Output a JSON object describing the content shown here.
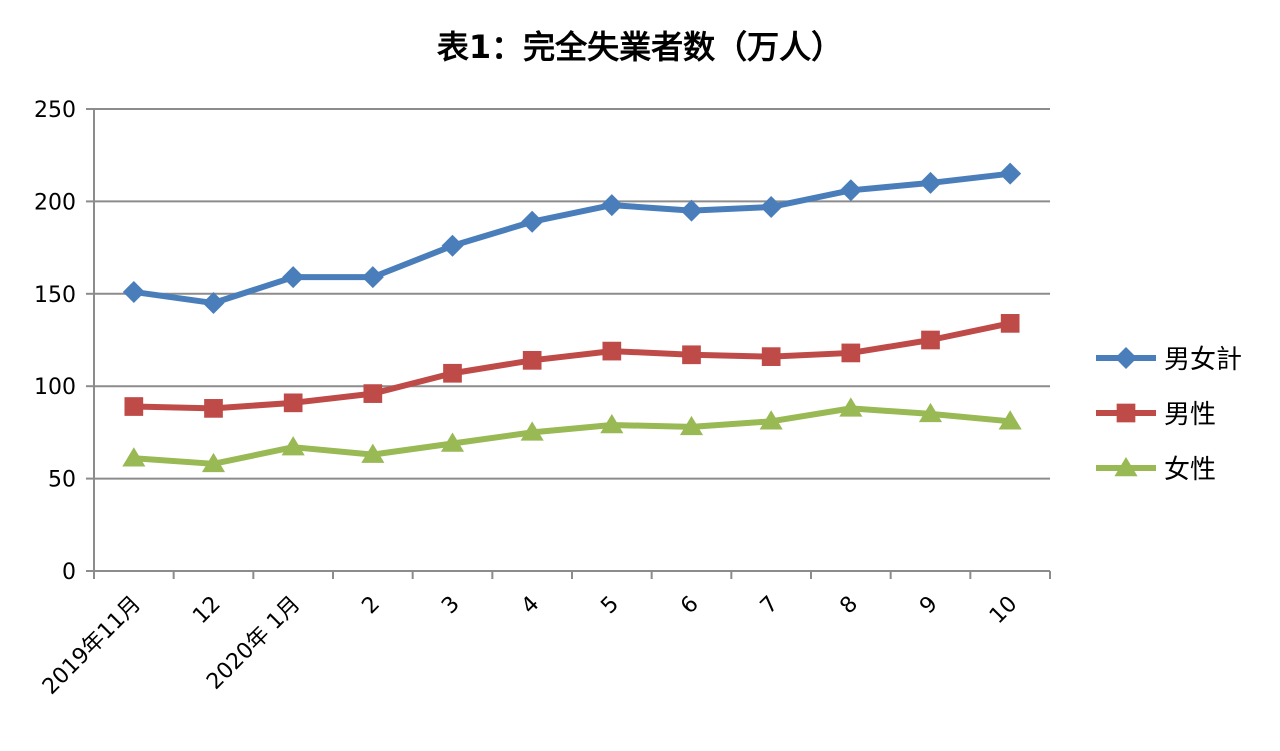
{
  "chart_data": {
    "type": "line",
    "title": "表1：完全失業者数（万人）",
    "xlabel": "",
    "ylabel": "",
    "categories": [
      "2019年11月",
      "12",
      "2020年 1月",
      "2",
      "3",
      "4",
      "5",
      "6",
      "7",
      "8",
      "9",
      "10"
    ],
    "ylim": [
      0,
      250
    ],
    "yticks": [
      0,
      50,
      100,
      150,
      200,
      250
    ],
    "grid": true,
    "legend_position": "right",
    "series": [
      {
        "name": "男女計",
        "color": "#4a7ebb",
        "marker": "diamond",
        "values": [
          151,
          145,
          159,
          159,
          176,
          189,
          198,
          195,
          197,
          206,
          210,
          215
        ]
      },
      {
        "name": "男性",
        "color": "#be4b48",
        "marker": "square",
        "values": [
          89,
          88,
          91,
          96,
          107,
          114,
          119,
          117,
          116,
          118,
          125,
          134
        ]
      },
      {
        "name": "女性",
        "color": "#98b954",
        "marker": "triangle",
        "values": [
          61,
          58,
          67,
          63,
          69,
          75,
          79,
          78,
          81,
          88,
          85,
          81
        ]
      }
    ]
  }
}
